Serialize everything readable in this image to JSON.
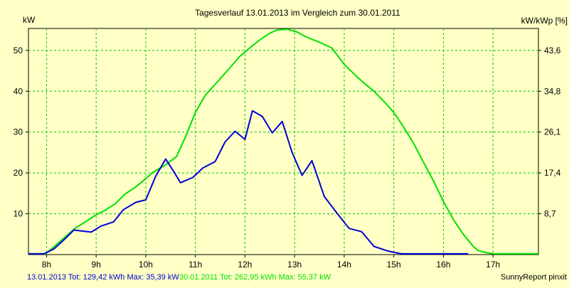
{
  "chart_data": {
    "type": "line",
    "title": "Tagesverlauf 13.01.2013 im Vergleich zum 30.01.2011",
    "left_axis_label": "kW",
    "right_axis_label": "kW/kWp [%]",
    "x_tick_labels": [
      "8h",
      "9h",
      "10h",
      "11h",
      "12h",
      "13h",
      "14h",
      "15h",
      "16h",
      "17h"
    ],
    "x_ticks": [
      8,
      9,
      10,
      11,
      12,
      13,
      14,
      15,
      16,
      17
    ],
    "xlim": [
      7.635,
      17.915
    ],
    "y_ticks": [
      10,
      20,
      30,
      40,
      50
    ],
    "ylim": [
      0,
      55.37
    ],
    "right_y_ticks": [
      8.7,
      17.4,
      26.1,
      34.8,
      43.6
    ],
    "right_y_tick_labels": [
      "8,7",
      "17,4",
      "26,1",
      "34,8",
      "43,6"
    ],
    "grid": true,
    "series": [
      {
        "name": "30.01.2011",
        "color": "#00e000",
        "x": [
          7.635,
          7.98,
          8.1,
          8.25,
          8.42,
          8.58,
          8.78,
          8.98,
          9.17,
          9.38,
          9.58,
          9.8,
          9.98,
          10.15,
          10.38,
          10.62,
          10.8,
          11.0,
          11.2,
          11.45,
          11.7,
          11.9,
          12.1,
          12.3,
          12.5,
          12.65,
          12.85,
          13.05,
          13.25,
          13.5,
          13.75,
          14.0,
          14.2,
          14.4,
          14.6,
          14.8,
          15.0,
          15.2,
          15.4,
          15.6,
          15.8,
          16.0,
          16.2,
          16.4,
          16.6,
          16.7,
          16.85,
          17.0,
          17.915
        ],
        "values": [
          0.2,
          0.2,
          1.4,
          3.0,
          4.8,
          6.5,
          8.0,
          9.6,
          10.8,
          12.4,
          14.8,
          16.6,
          18.4,
          20.2,
          21.8,
          24.0,
          28.8,
          34.8,
          39.0,
          42.4,
          45.8,
          48.6,
          50.6,
          52.6,
          54.2,
          55.0,
          55.2,
          54.5,
          53.2,
          52.0,
          50.6,
          46.6,
          44.2,
          42.0,
          40.0,
          37.5,
          34.8,
          31.2,
          27.2,
          22.6,
          18.0,
          13.0,
          8.6,
          5.0,
          2.0,
          1.0,
          0.5,
          0.2,
          0.2
        ]
      },
      {
        "name": "13.01.2013",
        "color": "#0000d8",
        "x": [
          7.635,
          7.95,
          8.15,
          8.35,
          8.55,
          8.7,
          8.9,
          9.1,
          9.35,
          9.55,
          9.8,
          10.0,
          10.2,
          10.4,
          10.55,
          10.7,
          10.95,
          11.15,
          11.4,
          11.6,
          11.8,
          12.0,
          12.15,
          12.35,
          12.55,
          12.75,
          12.95,
          13.15,
          13.35,
          13.6,
          13.85,
          14.1,
          14.35,
          14.6,
          14.9,
          15.15,
          15.4,
          15.6,
          15.8,
          16.0,
          16.3,
          16.5
        ],
        "values": [
          0.2,
          0.2,
          1.4,
          3.6,
          6.0,
          5.8,
          5.5,
          7.0,
          8.0,
          11.0,
          12.8,
          13.4,
          19.2,
          23.4,
          20.6,
          17.6,
          18.9,
          21.2,
          22.8,
          27.6,
          30.2,
          28.2,
          35.2,
          33.8,
          29.8,
          32.6,
          25.0,
          19.4,
          23.0,
          14.2,
          10.2,
          6.4,
          5.6,
          2.0,
          0.8,
          0.2,
          0.2,
          0.2,
          0.2,
          0.2,
          0.2,
          0.2
        ]
      }
    ]
  },
  "footer": {
    "series1_summary": "13.01.2013 Tot: 129,42 kWh Max: 35,39 kW",
    "series2_summary": "30.01.2011 Tot: 262,95 kWh Max: 55,37 kW",
    "source": "SunnyReport pinxit"
  }
}
